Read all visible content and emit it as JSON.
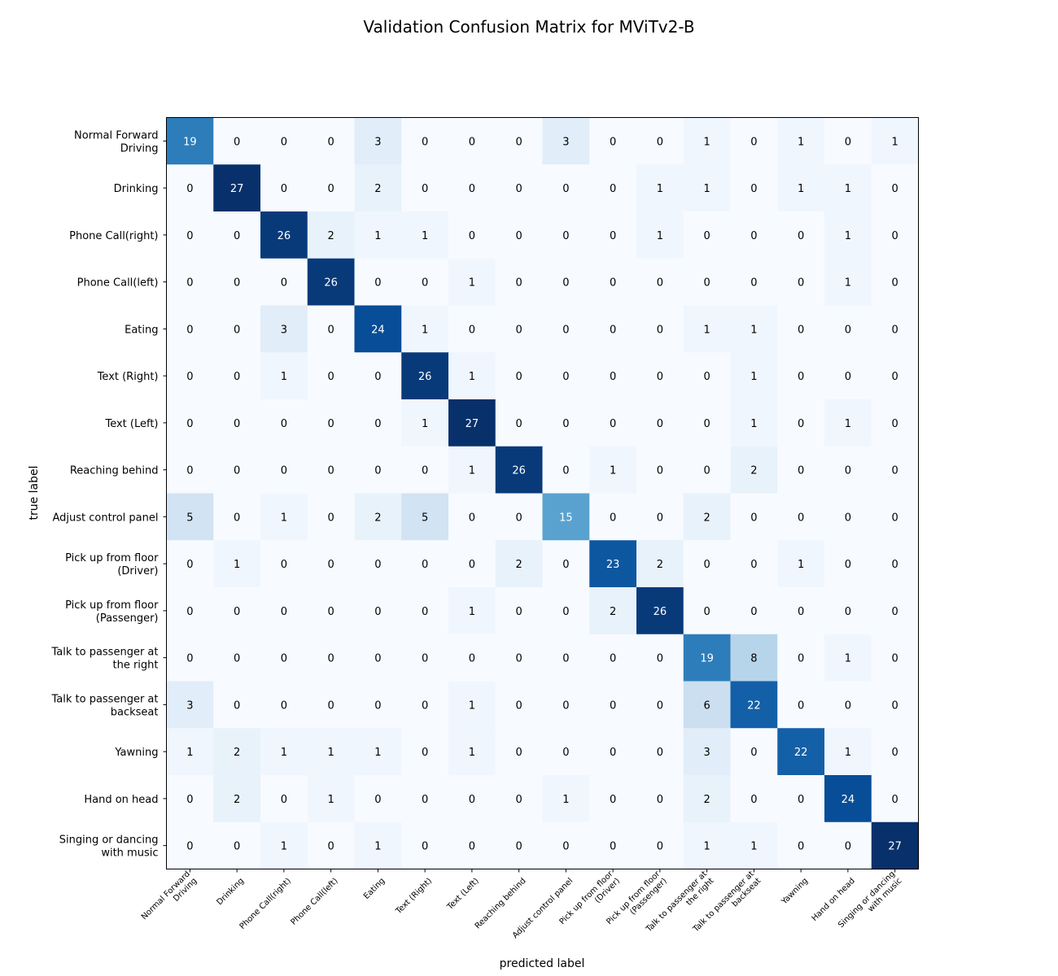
{
  "chart_data": {
    "type": "heatmap",
    "title": "Validation Confusion Matrix for MViTv2-B",
    "xlabel": "predicted label",
    "ylabel": "true label",
    "colormap": "Blues",
    "value_range": [
      0,
      27
    ],
    "x_categories": [
      [
        "Normal Forward",
        "Driving"
      ],
      [
        "Drinking"
      ],
      [
        "Phone Call(right)"
      ],
      [
        "Phone Call(left)"
      ],
      [
        "Eating"
      ],
      [
        "Text (Right)"
      ],
      [
        "Text (Left)"
      ],
      [
        "Reaching behind"
      ],
      [
        "Adjust control panel"
      ],
      [
        "Pick up from floor",
        "(Driver)"
      ],
      [
        "Pick up from floor",
        "(Passenger)"
      ],
      [
        "Talk to passenger at",
        "the right"
      ],
      [
        "Talk to passenger at",
        "backseat"
      ],
      [
        "Yawning"
      ],
      [
        "Hand on head"
      ],
      [
        "Singing or dancing",
        "with music"
      ]
    ],
    "y_categories": [
      [
        "Normal Forward",
        "Driving"
      ],
      [
        "Drinking"
      ],
      [
        "Phone Call(right)"
      ],
      [
        "Phone Call(left)"
      ],
      [
        "Eating"
      ],
      [
        "Text (Right)"
      ],
      [
        "Text (Left)"
      ],
      [
        "Reaching behind"
      ],
      [
        "Adjust control panel"
      ],
      [
        "Pick up from floor",
        "(Driver)"
      ],
      [
        "Pick up from floor",
        "(Passenger)"
      ],
      [
        "Talk to passenger at",
        "the right"
      ],
      [
        "Talk to passenger at",
        "backseat"
      ],
      [
        "Yawning"
      ],
      [
        "Hand on head"
      ],
      [
        "Singing or dancing",
        "with music"
      ]
    ],
    "matrix": [
      [
        19,
        0,
        0,
        0,
        3,
        0,
        0,
        0,
        3,
        0,
        0,
        1,
        0,
        1,
        0,
        1
      ],
      [
        0,
        27,
        0,
        0,
        2,
        0,
        0,
        0,
        0,
        0,
        1,
        1,
        0,
        1,
        1,
        0
      ],
      [
        0,
        0,
        26,
        2,
        1,
        1,
        0,
        0,
        0,
        0,
        1,
        0,
        0,
        0,
        1,
        0
      ],
      [
        0,
        0,
        0,
        26,
        0,
        0,
        1,
        0,
        0,
        0,
        0,
        0,
        0,
        0,
        1,
        0
      ],
      [
        0,
        0,
        3,
        0,
        24,
        1,
        0,
        0,
        0,
        0,
        0,
        1,
        1,
        0,
        0,
        0
      ],
      [
        0,
        0,
        1,
        0,
        0,
        26,
        1,
        0,
        0,
        0,
        0,
        0,
        1,
        0,
        0,
        0
      ],
      [
        0,
        0,
        0,
        0,
        0,
        1,
        27,
        0,
        0,
        0,
        0,
        0,
        1,
        0,
        1,
        0
      ],
      [
        0,
        0,
        0,
        0,
        0,
        0,
        1,
        26,
        0,
        1,
        0,
        0,
        2,
        0,
        0,
        0
      ],
      [
        5,
        0,
        1,
        0,
        2,
        5,
        0,
        0,
        15,
        0,
        0,
        2,
        0,
        0,
        0,
        0
      ],
      [
        0,
        1,
        0,
        0,
        0,
        0,
        0,
        2,
        0,
        23,
        2,
        0,
        0,
        1,
        0,
        0
      ],
      [
        0,
        0,
        0,
        0,
        0,
        0,
        1,
        0,
        0,
        2,
        26,
        0,
        0,
        0,
        0,
        0
      ],
      [
        0,
        0,
        0,
        0,
        0,
        0,
        0,
        0,
        0,
        0,
        0,
        19,
        8,
        0,
        1,
        0
      ],
      [
        3,
        0,
        0,
        0,
        0,
        0,
        1,
        0,
        0,
        0,
        0,
        6,
        22,
        0,
        0,
        0
      ],
      [
        1,
        2,
        1,
        1,
        1,
        0,
        1,
        0,
        0,
        0,
        0,
        3,
        0,
        22,
        1,
        0
      ],
      [
        0,
        2,
        0,
        1,
        0,
        0,
        0,
        0,
        1,
        0,
        0,
        2,
        0,
        0,
        24,
        0
      ],
      [
        0,
        0,
        1,
        0,
        1,
        0,
        0,
        0,
        0,
        0,
        0,
        1,
        1,
        0,
        0,
        27
      ]
    ],
    "grid": false,
    "legend": "none"
  }
}
